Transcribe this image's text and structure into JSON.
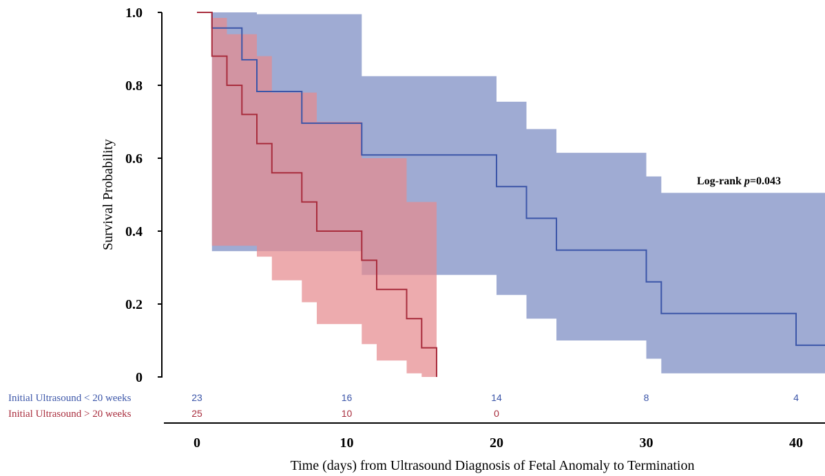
{
  "chart_data": {
    "type": "line",
    "subtype": "kaplan-meier",
    "xlabel": "Time (days) from Ultrasound Diagnosis of Fetal Anomaly to Termination",
    "ylabel": "Survival Probability",
    "xlim": [
      -1.3,
      42
    ],
    "ylim": [
      0,
      1.0
    ],
    "x_ticks": [
      0,
      10,
      20,
      30,
      40
    ],
    "x_tick_labels": [
      "0",
      "10",
      "20",
      "30",
      "40"
    ],
    "y_ticks": [
      0,
      0.2,
      0.4,
      0.6,
      0.8,
      1.0
    ],
    "y_tick_labels": [
      "0",
      "0.2",
      "0.4",
      "0.6",
      "0.8",
      "1.0"
    ],
    "grid": false,
    "annotation": {
      "prefix": "Log-rank ",
      "p_symbol": "p",
      "p_value": "=0.043"
    },
    "series": [
      {
        "name": "Initial Ultrasound < 20 weeks",
        "color": "#3b55a8",
        "band_color": "#8e9ccb",
        "steps": [
          [
            0,
            1.0
          ],
          [
            1,
            0.957
          ],
          [
            3,
            0.87
          ],
          [
            4,
            0.783
          ],
          [
            7,
            0.696
          ],
          [
            11,
            0.609
          ],
          [
            20,
            0.522
          ],
          [
            22,
            0.435
          ],
          [
            24,
            0.348
          ],
          [
            30,
            0.261
          ],
          [
            31,
            0.174
          ],
          [
            40,
            0.087
          ],
          [
            42,
            0.0
          ]
        ],
        "ci_lower": [
          [
            0,
            1.0
          ],
          [
            1,
            0.345
          ],
          [
            4,
            0.345
          ],
          [
            11,
            0.28
          ],
          [
            20,
            0.225
          ],
          [
            22,
            0.16
          ],
          [
            24,
            0.1
          ],
          [
            30,
            0.05
          ],
          [
            31,
            0.01
          ],
          [
            42,
            0.0
          ]
        ],
        "ci_upper": [
          [
            0,
            1.0
          ],
          [
            3,
            1.0
          ],
          [
            4,
            0.995
          ],
          [
            11,
            0.825
          ],
          [
            20,
            0.755
          ],
          [
            22,
            0.68
          ],
          [
            24,
            0.615
          ],
          [
            30,
            0.55
          ],
          [
            31,
            0.505
          ],
          [
            42,
            0.505
          ]
        ],
        "at_risk": [
          23,
          16,
          14,
          8,
          4
        ],
        "at_risk_x": [
          0,
          10,
          20,
          30,
          40
        ]
      },
      {
        "name": "Initial Ultrasound > 20 weeks",
        "color": "#a82c3c",
        "band_color": "#e68a8f",
        "steps": [
          [
            0,
            1.0
          ],
          [
            1,
            0.88
          ],
          [
            2,
            0.8
          ],
          [
            3,
            0.72
          ],
          [
            4,
            0.64
          ],
          [
            5,
            0.56
          ],
          [
            7,
            0.48
          ],
          [
            8,
            0.4
          ],
          [
            11,
            0.32
          ],
          [
            12,
            0.24
          ],
          [
            14,
            0.16
          ],
          [
            15,
            0.08
          ],
          [
            16,
            0.0
          ]
        ],
        "ci_lower": [
          [
            1,
            0.36
          ],
          [
            4,
            0.33
          ],
          [
            5,
            0.265
          ],
          [
            7,
            0.205
          ],
          [
            8,
            0.145
          ],
          [
            11,
            0.09
          ],
          [
            12,
            0.045
          ],
          [
            14,
            0.01
          ],
          [
            15,
            0.0
          ],
          [
            16,
            0.0
          ]
        ],
        "ci_upper": [
          [
            1,
            0.985
          ],
          [
            2,
            0.94
          ],
          [
            4,
            0.88
          ],
          [
            5,
            0.78
          ],
          [
            8,
            0.7
          ],
          [
            11,
            0.6
          ],
          [
            14,
            0.48
          ],
          [
            16,
            0.48
          ]
        ],
        "at_risk": [
          25,
          10,
          0
        ],
        "at_risk_x": [
          0,
          10,
          20
        ]
      }
    ]
  }
}
